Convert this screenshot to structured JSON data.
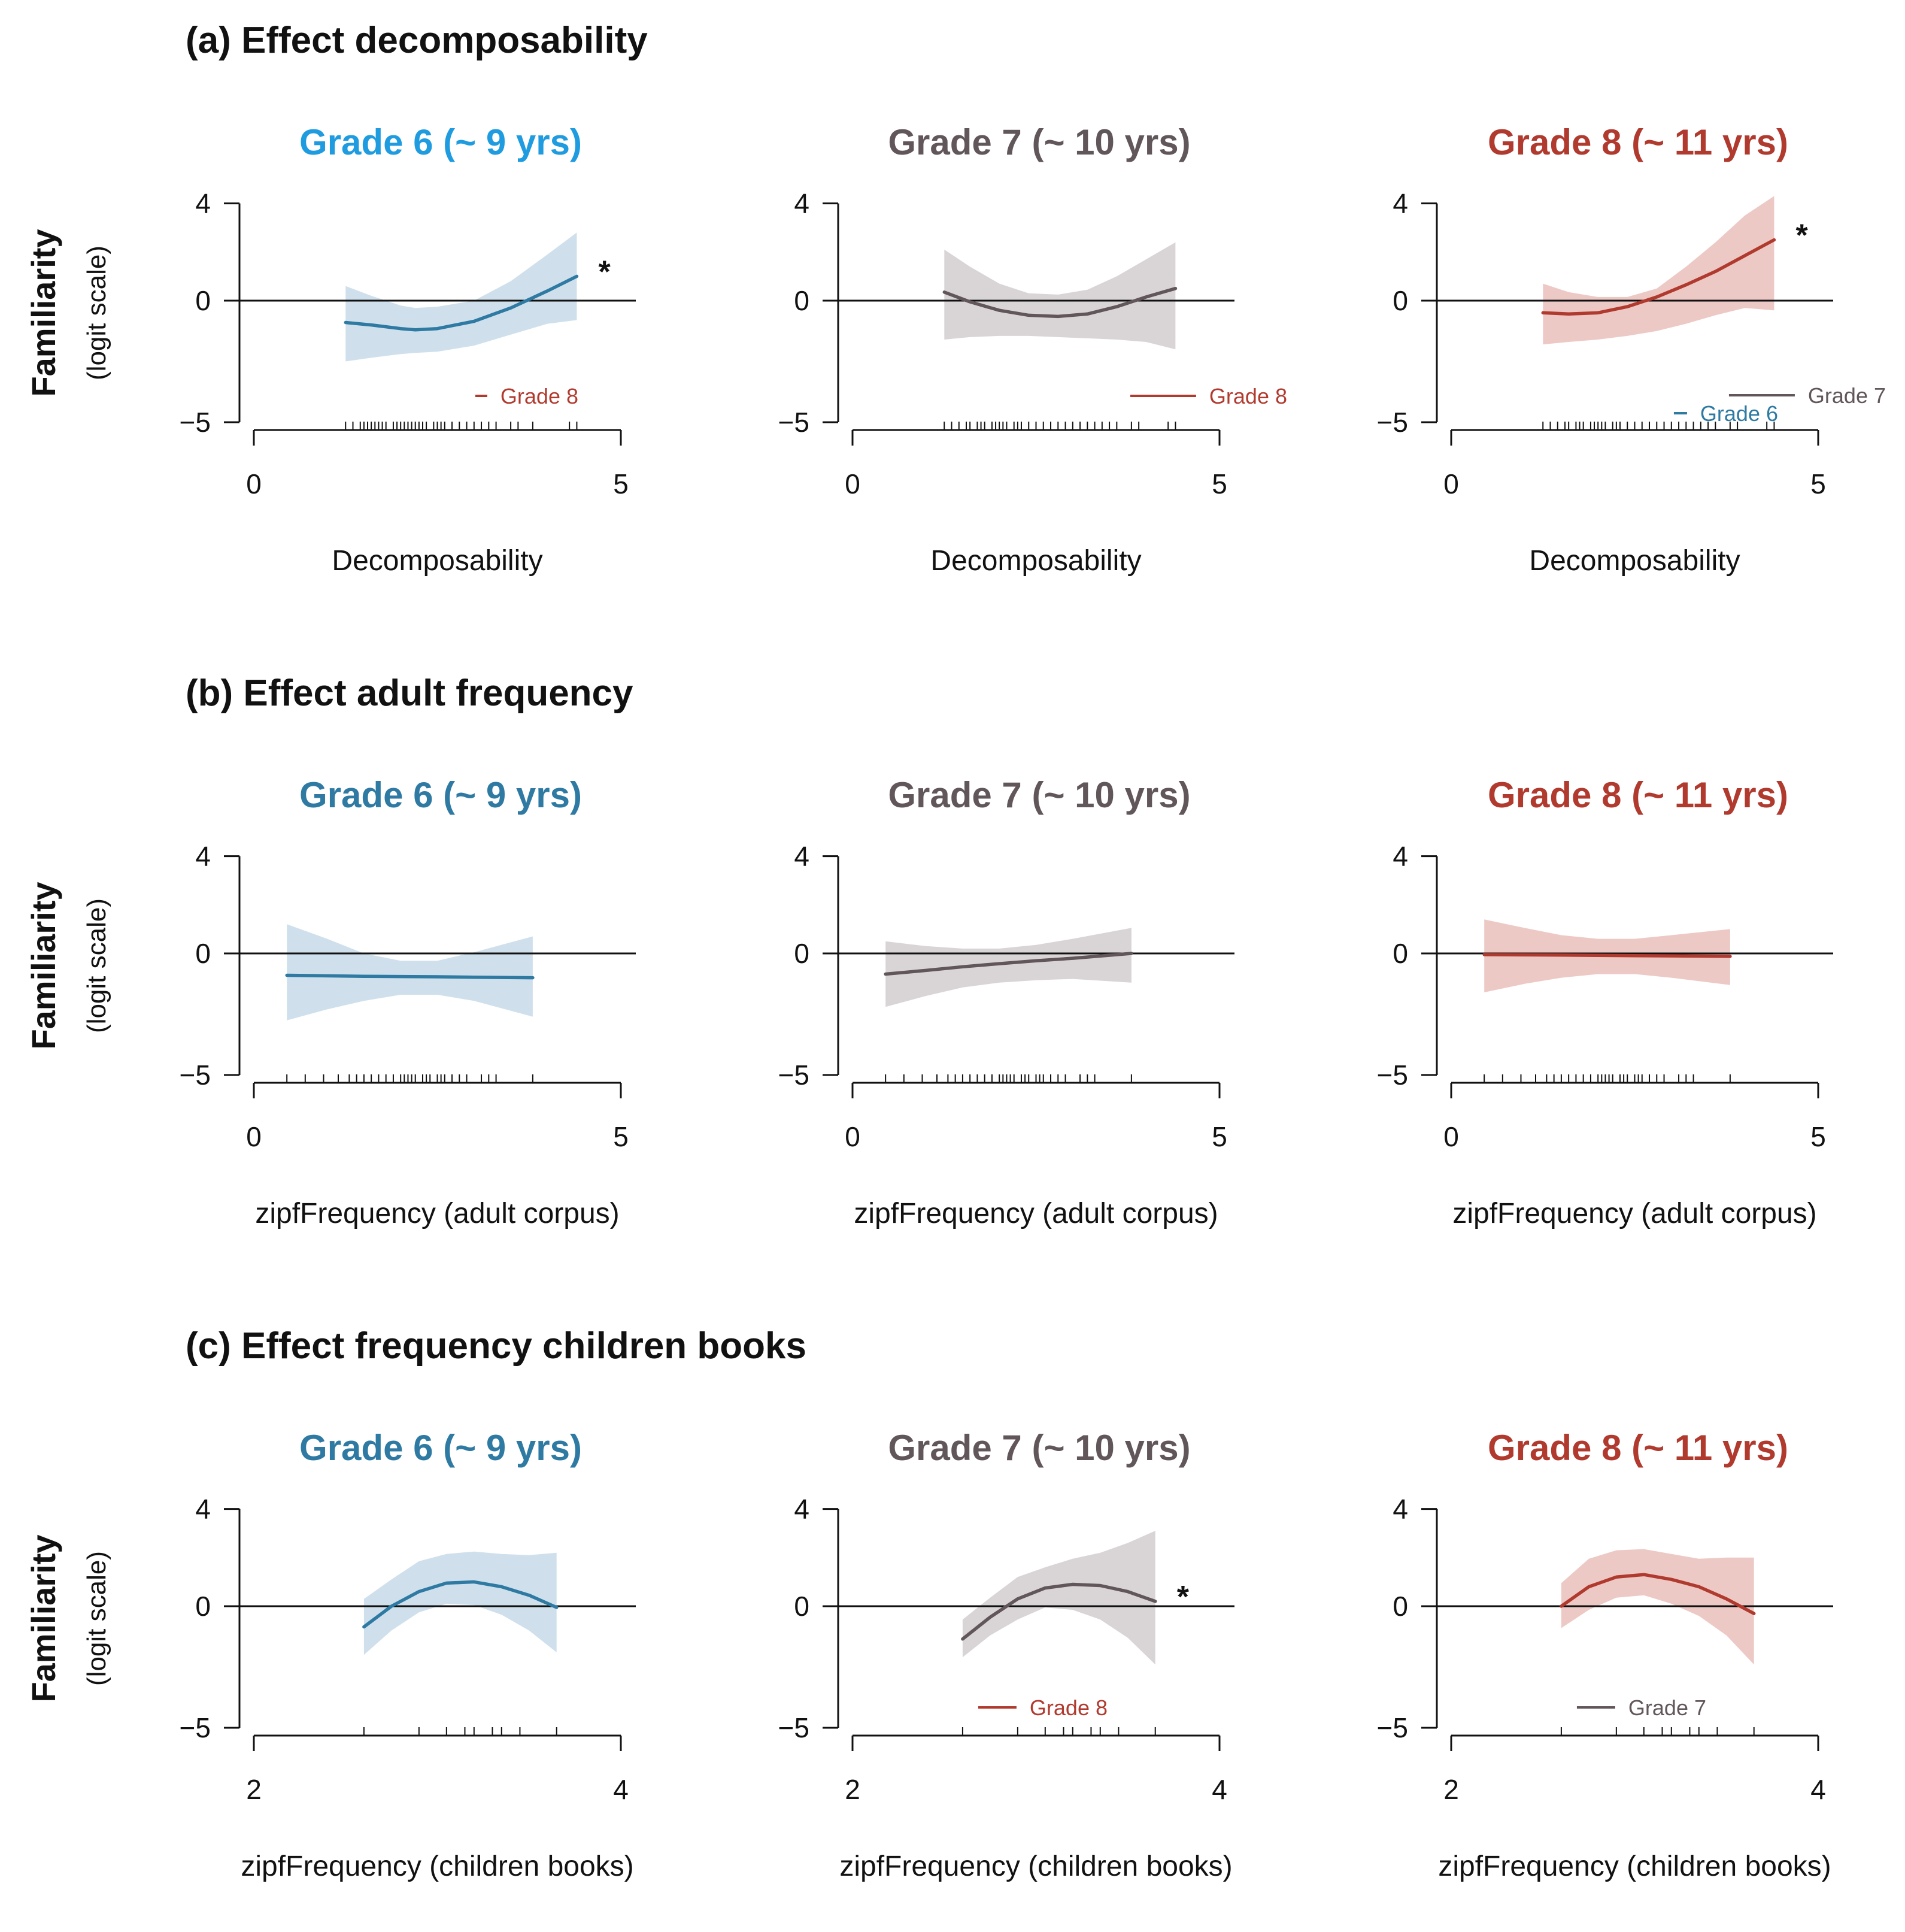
{
  "colors": {
    "grade6": "#2e7aa3",
    "grade6_title_a": "#1f9be0",
    "grade7": "#615659",
    "grade8": "#b13a2f",
    "grade6_band": "#cfe0ec",
    "grade7_band": "#d9d5d6",
    "grade8_band": "#edc9c6",
    "axis": "#111111"
  },
  "y_axis": {
    "label": "Familiarity",
    "sublabel": "(logit scale)",
    "ylim": [
      -5,
      4
    ],
    "ticks": [
      "4",
      "0",
      "−5"
    ]
  },
  "chart_data": [
    {
      "section_title": "(a) Effect decomposability",
      "xlabel": "Decomposability",
      "xlim": [
        0,
        5
      ],
      "xticks": [
        "0",
        "5"
      ],
      "xticks_values": [
        0,
        5
      ],
      "panels": [
        {
          "title": "Grade 6 (~ 9 yrs)",
          "color_key": "grade6_title_a",
          "series_color_key": "grade6",
          "band_color_key": "grade6_band",
          "type": "line",
          "x": [
            1.25,
            1.6,
            2.0,
            2.2,
            2.5,
            3.0,
            3.5,
            4.0,
            4.4
          ],
          "y": [
            -0.9,
            -1.0,
            -1.15,
            -1.2,
            -1.15,
            -0.85,
            -0.3,
            0.4,
            1.0
          ],
          "lower": [
            -2.5,
            -2.35,
            -2.2,
            -2.15,
            -2.1,
            -1.85,
            -1.4,
            -0.95,
            -0.8
          ],
          "upper": [
            0.6,
            0.2,
            -0.2,
            -0.3,
            -0.25,
            0.0,
            0.8,
            1.9,
            2.8
          ],
          "rug": [
            1.25,
            1.35,
            1.45,
            1.5,
            1.55,
            1.6,
            1.65,
            1.7,
            1.75,
            1.8,
            1.9,
            1.95,
            2.0,
            2.05,
            2.1,
            2.15,
            2.2,
            2.25,
            2.3,
            2.35,
            2.45,
            2.5,
            2.55,
            2.6,
            2.7,
            2.8,
            2.9,
            3.0,
            3.1,
            3.2,
            3.3,
            3.5,
            3.6,
            3.8,
            4.3,
            4.4
          ],
          "significant": true,
          "significance_label": "*",
          "legend": [
            {
              "label": "Grade 8",
              "color_key": "grade8",
              "line": "short"
            }
          ]
        },
        {
          "title": "Grade 7 (~ 10 yrs)",
          "color_key": "grade7",
          "series_color_key": "grade7",
          "band_color_key": "grade7_band",
          "type": "line",
          "x": [
            1.25,
            1.6,
            2.0,
            2.4,
            2.8,
            3.2,
            3.6,
            4.0,
            4.4
          ],
          "y": [
            0.35,
            -0.05,
            -0.4,
            -0.6,
            -0.65,
            -0.55,
            -0.25,
            0.15,
            0.5
          ],
          "lower": [
            -1.6,
            -1.5,
            -1.45,
            -1.45,
            -1.5,
            -1.55,
            -1.6,
            -1.7,
            -2.0
          ],
          "upper": [
            2.1,
            1.4,
            0.7,
            0.3,
            0.25,
            0.45,
            1.0,
            1.7,
            2.4
          ],
          "rug": [
            1.25,
            1.35,
            1.45,
            1.55,
            1.6,
            1.7,
            1.75,
            1.8,
            1.9,
            1.95,
            2.0,
            2.05,
            2.1,
            2.2,
            2.25,
            2.3,
            2.4,
            2.5,
            2.6,
            2.7,
            2.8,
            2.9,
            3.0,
            3.1,
            3.2,
            3.3,
            3.4,
            3.5,
            3.6,
            3.8,
            3.9,
            4.3,
            4.4
          ],
          "significant": false,
          "legend": [
            {
              "label": "Grade 8",
              "color_key": "grade8",
              "line": "long"
            }
          ]
        },
        {
          "title": "Grade 8 (~ 11 yrs)",
          "color_key": "grade8",
          "series_color_key": "grade8",
          "band_color_key": "grade8_band",
          "type": "line",
          "x": [
            1.25,
            1.6,
            2.0,
            2.4,
            2.8,
            3.2,
            3.6,
            4.0,
            4.4
          ],
          "y": [
            -0.5,
            -0.55,
            -0.5,
            -0.25,
            0.15,
            0.65,
            1.2,
            1.85,
            2.5
          ],
          "lower": [
            -1.8,
            -1.7,
            -1.6,
            -1.45,
            -1.25,
            -0.95,
            -0.6,
            -0.3,
            -0.4
          ],
          "upper": [
            0.7,
            0.35,
            0.15,
            0.15,
            0.5,
            1.4,
            2.4,
            3.5,
            4.3
          ],
          "rug": [
            1.25,
            1.35,
            1.45,
            1.55,
            1.6,
            1.7,
            1.75,
            1.8,
            1.9,
            1.95,
            2.0,
            2.05,
            2.1,
            2.2,
            2.25,
            2.3,
            2.4,
            2.5,
            2.6,
            2.7,
            2.8,
            2.9,
            3.0,
            3.1,
            3.2,
            3.3,
            3.4,
            3.5,
            3.6,
            3.8,
            3.9,
            4.3,
            4.4
          ],
          "significant": true,
          "significance_label": "*",
          "legend": [
            {
              "label": "Grade 7",
              "color_key": "grade7",
              "line": "long"
            },
            {
              "label": "Grade 6",
              "color_key": "grade6",
              "line": "short"
            }
          ]
        }
      ]
    },
    {
      "section_title": "(b) Effect adult frequency",
      "xlabel": "zipfFrequency (adult corpus)",
      "xlim": [
        0,
        5
      ],
      "xticks": [
        "0",
        "5"
      ],
      "xticks_values": [
        0,
        5
      ],
      "panels": [
        {
          "title": "Grade 6 (~ 9 yrs)",
          "color_key": "grade6",
          "series_color_key": "grade6",
          "band_color_key": "grade6_band",
          "type": "line",
          "x": [
            0.45,
            1.0,
            1.5,
            2.0,
            2.5,
            3.0,
            3.8
          ],
          "y": [
            -0.9,
            -0.92,
            -0.94,
            -0.95,
            -0.96,
            -0.98,
            -1.0
          ],
          "lower": [
            -2.75,
            -2.3,
            -1.95,
            -1.7,
            -1.7,
            -1.95,
            -2.6
          ],
          "upper": [
            1.2,
            0.6,
            0.0,
            -0.3,
            -0.3,
            0.05,
            0.7
          ],
          "rug": [
            0.45,
            0.7,
            0.95,
            1.15,
            1.3,
            1.4,
            1.5,
            1.6,
            1.7,
            1.8,
            1.9,
            2.0,
            2.05,
            2.1,
            2.15,
            2.2,
            2.3,
            2.35,
            2.4,
            2.5,
            2.55,
            2.6,
            2.7,
            2.8,
            2.9,
            3.1,
            3.2,
            3.3,
            3.8
          ],
          "significant": false,
          "legend": []
        },
        {
          "title": "Grade 7 (~ 10 yrs)",
          "color_key": "grade7",
          "series_color_key": "grade7",
          "band_color_key": "grade7_band",
          "type": "line",
          "x": [
            0.45,
            1.0,
            1.5,
            2.0,
            2.5,
            3.0,
            3.8
          ],
          "y": [
            -0.85,
            -0.7,
            -0.55,
            -0.42,
            -0.3,
            -0.2,
            0.0
          ],
          "lower": [
            -2.2,
            -1.75,
            -1.4,
            -1.2,
            -1.1,
            -1.05,
            -1.2
          ],
          "upper": [
            0.5,
            0.3,
            0.2,
            0.2,
            0.35,
            0.6,
            1.05
          ],
          "rug": [
            0.45,
            0.7,
            0.95,
            1.15,
            1.3,
            1.4,
            1.5,
            1.6,
            1.7,
            1.8,
            1.9,
            2.0,
            2.05,
            2.1,
            2.15,
            2.2,
            2.3,
            2.35,
            2.4,
            2.5,
            2.55,
            2.6,
            2.7,
            2.8,
            2.9,
            3.1,
            3.2,
            3.3,
            3.8
          ],
          "significant": false,
          "legend": []
        },
        {
          "title": "Grade 8 (~ 11 yrs)",
          "color_key": "grade8",
          "series_color_key": "grade8",
          "band_color_key": "grade8_band",
          "type": "line",
          "x": [
            0.45,
            1.0,
            1.5,
            2.0,
            2.5,
            3.0,
            3.8
          ],
          "y": [
            -0.05,
            -0.06,
            -0.07,
            -0.08,
            -0.09,
            -0.1,
            -0.12
          ],
          "lower": [
            -1.6,
            -1.25,
            -1.0,
            -0.85,
            -0.85,
            -1.0,
            -1.3
          ],
          "upper": [
            1.4,
            1.05,
            0.75,
            0.6,
            0.6,
            0.75,
            1.0
          ],
          "rug": [
            0.45,
            0.7,
            0.95,
            1.15,
            1.3,
            1.4,
            1.5,
            1.6,
            1.7,
            1.8,
            1.9,
            2.0,
            2.05,
            2.1,
            2.15,
            2.2,
            2.3,
            2.35,
            2.4,
            2.5,
            2.55,
            2.6,
            2.7,
            2.8,
            2.9,
            3.1,
            3.2,
            3.3,
            3.8
          ],
          "significant": false,
          "legend": []
        }
      ]
    },
    {
      "section_title": "(c) Effect frequency children books",
      "xlabel": "zipfFrequency (children books)",
      "xlim": [
        2,
        4
      ],
      "xticks": [
        "2",
        "4"
      ],
      "xticks_values": [
        2,
        4
      ],
      "panels": [
        {
          "title": "Grade 6 (~ 9 yrs)",
          "color_key": "grade6",
          "series_color_key": "grade6",
          "band_color_key": "grade6_band",
          "type": "line",
          "x": [
            2.6,
            2.75,
            2.9,
            3.05,
            3.2,
            3.35,
            3.5,
            3.65
          ],
          "y": [
            -0.85,
            0.0,
            0.6,
            0.95,
            1.0,
            0.8,
            0.45,
            -0.05
          ],
          "lower": [
            -2.0,
            -1.0,
            -0.25,
            0.1,
            0.05,
            -0.35,
            -1.0,
            -1.9
          ],
          "upper": [
            0.3,
            1.1,
            1.85,
            2.15,
            2.25,
            2.15,
            2.1,
            2.2
          ],
          "rug": [
            2.6,
            2.9,
            3.05,
            3.15,
            3.2,
            3.3,
            3.35,
            3.45,
            3.65
          ],
          "significant": false,
          "legend": []
        },
        {
          "title": "Grade 7 (~ 10 yrs)",
          "color_key": "grade7",
          "series_color_key": "grade7",
          "band_color_key": "grade7_band",
          "type": "line",
          "x": [
            2.6,
            2.75,
            2.9,
            3.05,
            3.2,
            3.35,
            3.5,
            3.65
          ],
          "y": [
            -1.35,
            -0.45,
            0.3,
            0.75,
            0.9,
            0.85,
            0.6,
            0.2
          ],
          "lower": [
            -2.1,
            -1.2,
            -0.55,
            -0.05,
            -0.15,
            -0.55,
            -1.3,
            -2.4
          ],
          "upper": [
            -0.55,
            0.35,
            1.2,
            1.6,
            1.95,
            2.2,
            2.6,
            3.1
          ],
          "rug": [
            2.6,
            2.9,
            3.05,
            3.15,
            3.2,
            3.3,
            3.35,
            3.45,
            3.65
          ],
          "significant": true,
          "significance_label": "*",
          "legend": [
            {
              "label": "Grade 8",
              "color_key": "grade8",
              "line": "long"
            }
          ]
        },
        {
          "title": "Grade 8 (~ 11 yrs)",
          "color_key": "grade8",
          "series_color_key": "grade8",
          "band_color_key": "grade8_band",
          "type": "line",
          "x": [
            2.6,
            2.75,
            2.9,
            3.05,
            3.2,
            3.35,
            3.5,
            3.65
          ],
          "y": [
            0.0,
            0.8,
            1.2,
            1.3,
            1.1,
            0.8,
            0.3,
            -0.3
          ],
          "lower": [
            -0.9,
            -0.15,
            0.35,
            0.45,
            0.1,
            -0.4,
            -1.2,
            -2.4
          ],
          "upper": [
            0.95,
            1.95,
            2.3,
            2.35,
            2.15,
            1.95,
            2.0,
            2.0
          ],
          "rug": [
            2.6,
            2.9,
            3.05,
            3.15,
            3.2,
            3.3,
            3.35,
            3.45,
            3.65
          ],
          "significant": false,
          "legend": [
            {
              "label": "Grade 7",
              "color_key": "grade7",
              "line": "long"
            }
          ]
        }
      ]
    }
  ]
}
